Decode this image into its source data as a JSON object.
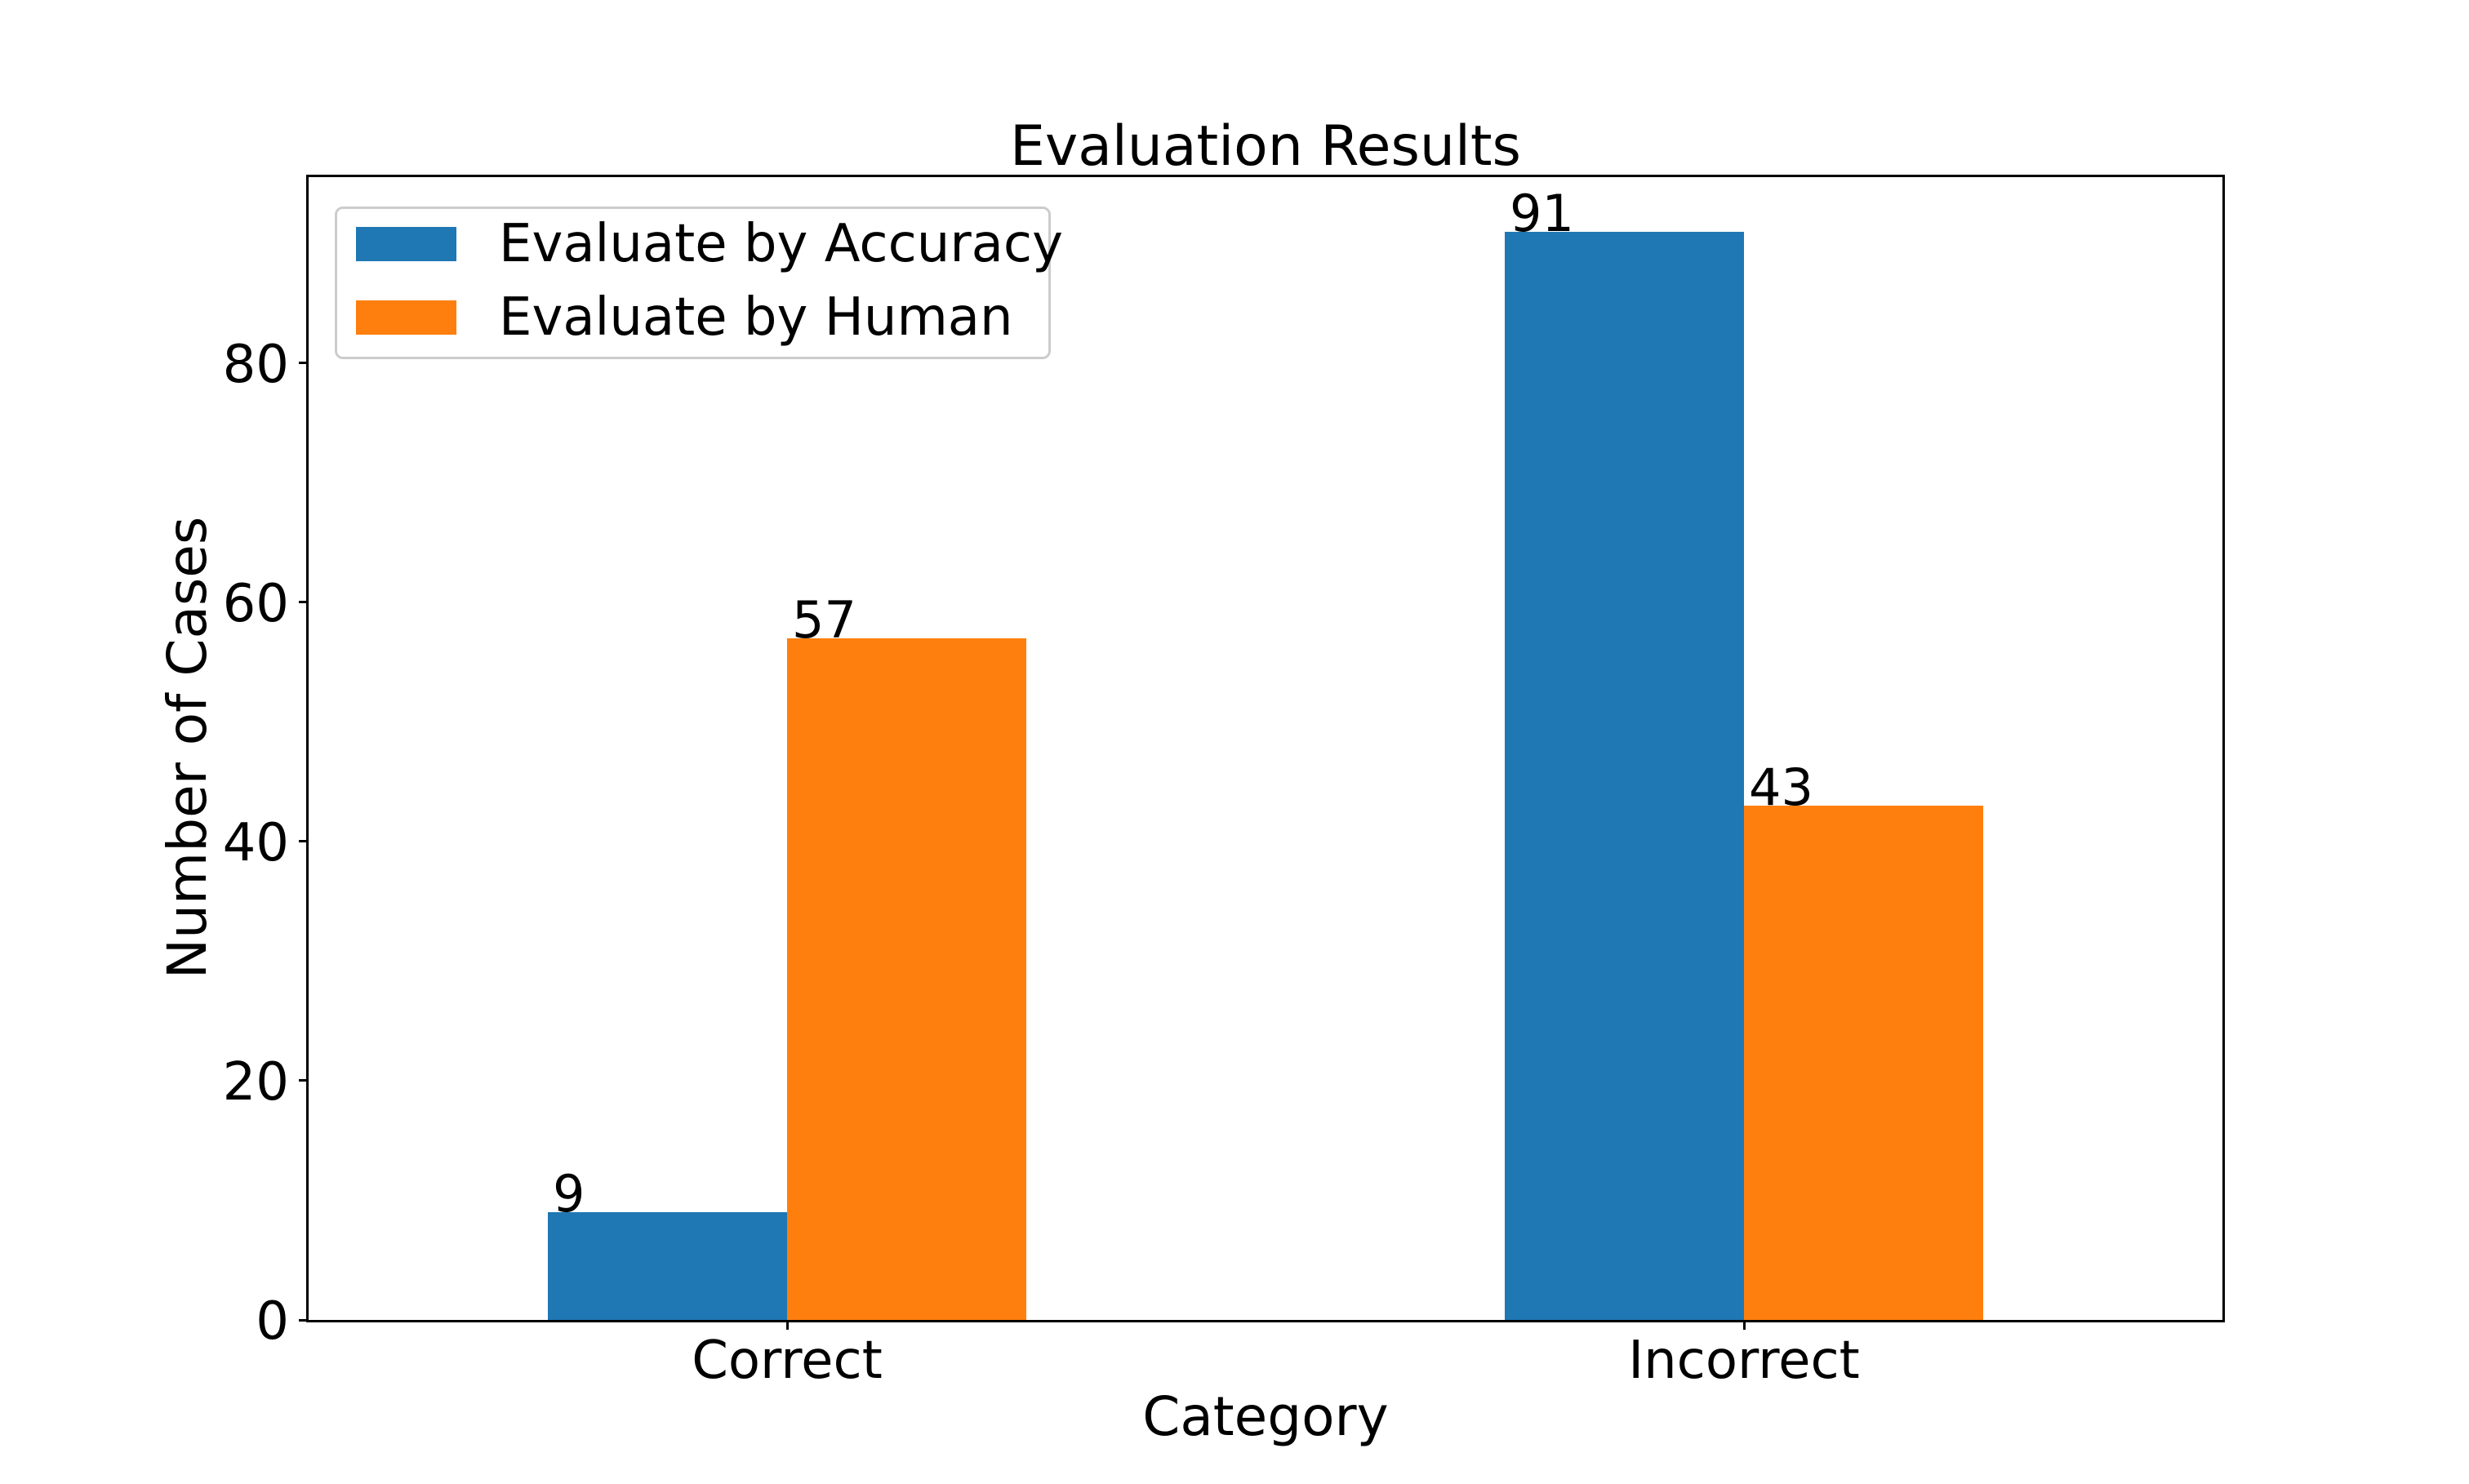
{
  "figure": {
    "background": "#ffffff"
  },
  "chart_data": {
    "type": "bar",
    "title": "Evaluation Results",
    "xlabel": "Category",
    "ylabel": "Number of Cases",
    "categories": [
      "Correct",
      "Incorrect"
    ],
    "series": [
      {
        "name": "Evaluate by Accuracy",
        "color": "#1f77b4",
        "values": [
          9,
          91
        ]
      },
      {
        "name": "Evaluate by Human",
        "color": "#ff7f0e",
        "values": [
          57,
          43
        ]
      }
    ],
    "bar_value_labels": true,
    "yticks": [
      0,
      20,
      40,
      60,
      80
    ],
    "ylim": [
      0,
      95.55
    ],
    "grid": false,
    "legend_position": "upper left",
    "axis_color": "#000000",
    "text_color": "#000000"
  }
}
